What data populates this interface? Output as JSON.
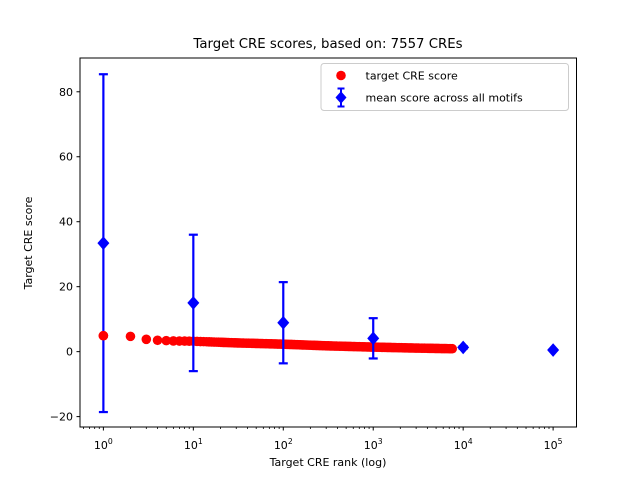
{
  "figure": {
    "background": "#ffffff"
  },
  "chart_data": {
    "type": "scatter",
    "title": "Target CRE scores, based on: 7557 CREs",
    "xlabel": "Target CRE rank (log)",
    "ylabel": "Target CRE score",
    "x_scale": "log",
    "grid": false,
    "xlim_log10": [
      -0.26,
      5.26
    ],
    "ylim": [
      -23.2,
      90.4
    ],
    "x_tick_exponents": [
      0,
      1,
      2,
      3,
      4,
      5
    ],
    "y_ticks": [
      -20,
      0,
      20,
      40,
      60,
      80
    ],
    "y_tick_labels": [
      "−20",
      "0",
      "20",
      "40",
      "60",
      "80"
    ],
    "colors": {
      "target": "#ff0000",
      "mean": "#0000ff",
      "axes": "#000000",
      "legend_border": "#cccccc"
    },
    "series": [
      {
        "name": "target CRE score",
        "type": "scatter",
        "marker": "circle",
        "color": "#ff0000",
        "n_points": 7557,
        "rank_range": [
          1,
          7557
        ],
        "anchors_rank_score": [
          [
            1,
            4.9
          ],
          [
            2,
            4.7
          ],
          [
            3,
            3.8
          ],
          [
            4,
            3.5
          ],
          [
            6,
            3.3
          ],
          [
            10,
            3.2
          ],
          [
            30,
            2.7
          ],
          [
            100,
            2.3
          ],
          [
            300,
            1.8
          ],
          [
            1000,
            1.4
          ],
          [
            3000,
            1.1
          ],
          [
            7557,
            0.9
          ]
        ]
      },
      {
        "name": "mean score across all motifs",
        "type": "errorbar",
        "marker": "diamond",
        "color": "#0000ff",
        "x": [
          1,
          10,
          100,
          1000,
          10000,
          100000
        ],
        "y": [
          33.4,
          15.0,
          8.9,
          4.1,
          1.3,
          0.5
        ],
        "yerr": [
          52.0,
          21.0,
          12.5,
          6.2,
          0.4,
          0.2
        ]
      }
    ],
    "legend": {
      "position": "upper right",
      "entries": [
        {
          "label": "target CRE score",
          "marker": "circle",
          "color": "#ff0000"
        },
        {
          "label": "mean score across all motifs",
          "marker": "diamond-errorbar",
          "color": "#0000ff"
        }
      ]
    }
  }
}
